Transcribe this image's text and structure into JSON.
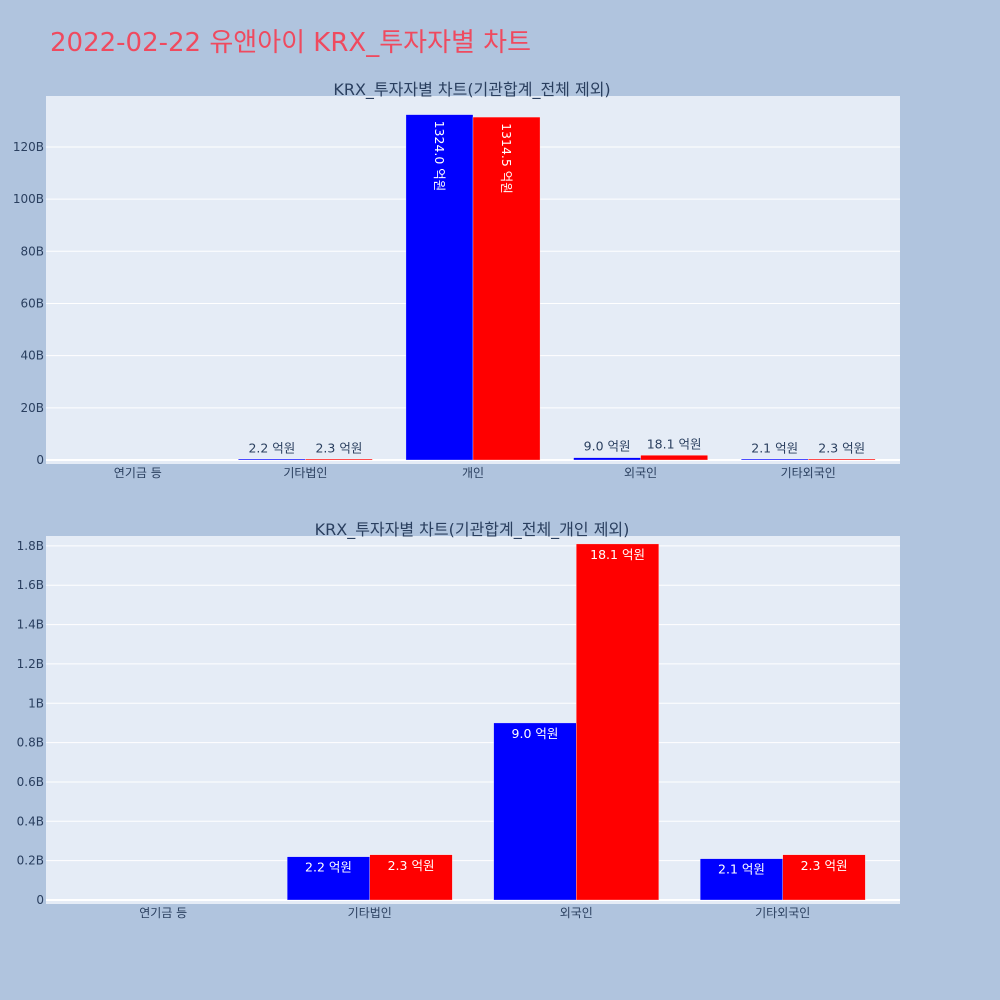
{
  "title": "2022-02-22 유앤아이 KRX_투자자별 차트",
  "colors": {
    "background": "#b0c4de",
    "plot_bg": "#e5ecf6",
    "title": "#ef4a5f",
    "buy": "#0000ff",
    "sell": "#ff0000"
  },
  "chart_data": [
    {
      "type": "bar",
      "title": "KRX_투자자별 차트(기관합계_전체 제외)",
      "categories": [
        "연기금 등",
        "기타법인",
        "개인",
        "외국인",
        "기타외국인"
      ],
      "series": [
        {
          "color": "#0000ff",
          "values": [
            0,
            220000000,
            132400000000,
            900000000,
            210000000
          ],
          "labels": [
            "",
            "2.2 억원",
            "1324.0 억원",
            "9.0 억원",
            "2.1 억원"
          ]
        },
        {
          "color": "#ff0000",
          "values": [
            0,
            230000000,
            131450000000,
            1810000000,
            230000000
          ],
          "labels": [
            "",
            "2.3 억원",
            "1314.5 억원",
            "18.1 억원",
            "2.3 억원"
          ]
        }
      ],
      "ylim": [
        0,
        138000000000
      ],
      "yticks": [
        0,
        20000000000,
        40000000000,
        60000000000,
        80000000000,
        100000000000,
        120000000000
      ],
      "ytick_labels": [
        "0",
        "20B",
        "40B",
        "60B",
        "80B",
        "100B",
        "120B"
      ],
      "grid": true,
      "xlabel": "",
      "ylabel": ""
    },
    {
      "type": "bar",
      "title": "KRX_투자자별 차트(기관합계_전체_개인 제외)",
      "categories": [
        "연기금 등",
        "기타법인",
        "외국인",
        "기타외국인"
      ],
      "series": [
        {
          "color": "#0000ff",
          "values": [
            0,
            220000000,
            900000000,
            210000000
          ],
          "labels": [
            "",
            "2.2 억원",
            "9.0 억원",
            "2.1 억원"
          ]
        },
        {
          "color": "#ff0000",
          "values": [
            0,
            230000000,
            1810000000,
            230000000
          ],
          "labels": [
            "",
            "2.3 억원",
            "18.1 억원",
            "2.3 억원"
          ]
        }
      ],
      "ylim": [
        0,
        1830000000
      ],
      "yticks": [
        0,
        200000000,
        400000000,
        600000000,
        800000000,
        1000000000,
        1200000000,
        1400000000,
        1600000000,
        1800000000
      ],
      "ytick_labels": [
        "0",
        "0.2B",
        "0.4B",
        "0.6B",
        "0.8B",
        "1B",
        "1.2B",
        "1.4B",
        "1.6B",
        "1.8B"
      ],
      "grid": true,
      "xlabel": "",
      "ylabel": ""
    }
  ]
}
